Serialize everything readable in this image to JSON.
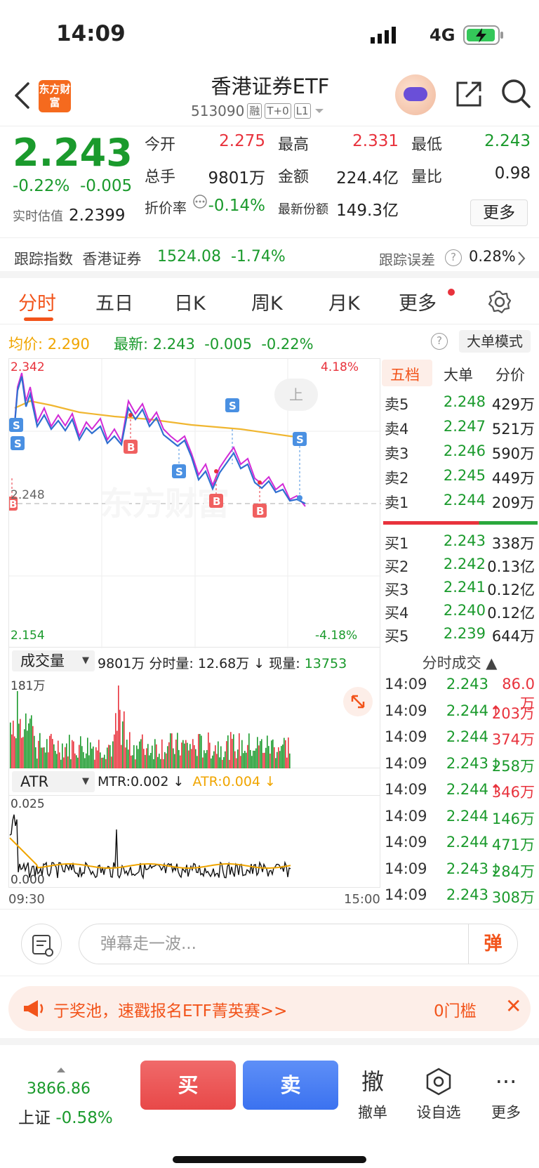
{
  "status_bar": {
    "time": "14:09",
    "network": "4G"
  },
  "header": {
    "back_icon": "chevron-left-icon",
    "logo_text": "东方财富",
    "title": "香港证券ETF",
    "code": "513090",
    "tags": [
      "融",
      "T+0",
      "L1"
    ],
    "share_icon": "share-icon",
    "search_icon": "search-icon"
  },
  "quote": {
    "price": "2.243",
    "change_pct": "-0.22%",
    "change_abs": "-0.005",
    "est_label": "实时估值",
    "est_value": "2.2399",
    "open_label": "今开",
    "open_value": "2.275",
    "high_label": "最高",
    "high_value": "2.331",
    "low_label": "最低",
    "low_value": "2.243",
    "vol_label": "总手",
    "vol_value": "9801万",
    "amount_label": "金额",
    "amount_value": "224.4亿",
    "ratio_label": "量比",
    "ratio_value": "0.98",
    "premium_label": "折价率",
    "premium_value": "-0.14%",
    "shares_label": "最新份额",
    "shares_value": "149.3亿",
    "more_label": "更多"
  },
  "tracking": {
    "label": "跟踪指数",
    "index_name": "香港证券",
    "index_value": "1524.08",
    "index_change": "-1.74%",
    "error_label": "跟踪误差",
    "error_value": "0.28%"
  },
  "tabs": [
    "分时",
    "五日",
    "日K",
    "周K",
    "月K",
    "更多"
  ],
  "avg_bar": {
    "avg_label": "均价:",
    "avg_value": "2.290",
    "latest_label": "最新:",
    "latest_value": "2.243",
    "latest_change": "-0.005",
    "latest_pct": "-0.22%",
    "big_order_mode": "大单模式"
  },
  "intraday_chart": {
    "max_price": "2.342",
    "ref_price": "2.248",
    "min_price": "2.154",
    "max_pct": "4.18%",
    "min_pct": "-4.18%",
    "scroll_hint": "上",
    "watermark": "东方财富"
  },
  "order_book": {
    "tabs": [
      "五档",
      "大单",
      "分价"
    ],
    "asks": [
      {
        "name": "卖5",
        "price": "2.248",
        "qty": "429万"
      },
      {
        "name": "卖4",
        "price": "2.247",
        "qty": "521万"
      },
      {
        "name": "卖3",
        "price": "2.246",
        "qty": "590万"
      },
      {
        "name": "卖2",
        "price": "2.245",
        "qty": "449万"
      },
      {
        "name": "卖1",
        "price": "2.244",
        "qty": "209万"
      }
    ],
    "bids": [
      {
        "name": "买1",
        "price": "2.243",
        "qty": "338万"
      },
      {
        "name": "买2",
        "price": "2.242",
        "qty": "0.13亿"
      },
      {
        "name": "买3",
        "price": "2.241",
        "qty": "0.12亿"
      },
      {
        "name": "买4",
        "price": "2.240",
        "qty": "0.12亿"
      },
      {
        "name": "买5",
        "price": "2.239",
        "qty": "644万"
      }
    ]
  },
  "volume": {
    "selector": "成交量",
    "total": "9801万",
    "minute_label": "分时量:",
    "minute_value": "12.68万",
    "now_label": "现量:",
    "now_value": "13753",
    "axis_max": "181万"
  },
  "atr": {
    "selector": "ATR",
    "mtr_label": "MTR:0.002",
    "atr_label": "ATR:0.004",
    "axis_max": "0.025",
    "axis_min": "0.000",
    "time_start": "09:30",
    "time_end": "15:00"
  },
  "ticks": {
    "header": "分时成交",
    "rows": [
      {
        "time": "14:09",
        "price": "2.243",
        "arrow": "",
        "qty": "86.0万",
        "color": "red"
      },
      {
        "time": "14:09",
        "price": "2.244",
        "arrow": "↑",
        "qty": "203万",
        "color": "red"
      },
      {
        "time": "14:09",
        "price": "2.244",
        "arrow": "",
        "qty": "374万",
        "color": "red"
      },
      {
        "time": "14:09",
        "price": "2.243",
        "arrow": "↓",
        "qty": "258万",
        "color": "green"
      },
      {
        "time": "14:09",
        "price": "2.244",
        "arrow": "↑",
        "qty": "346万",
        "color": "red"
      },
      {
        "time": "14:09",
        "price": "2.244",
        "arrow": "",
        "qty": "146万",
        "color": "green"
      },
      {
        "time": "14:09",
        "price": "2.244",
        "arrow": "",
        "qty": "471万",
        "color": "green"
      },
      {
        "time": "14:09",
        "price": "2.243",
        "arrow": "↓",
        "qty": "284万",
        "color": "green"
      },
      {
        "time": "14:09",
        "price": "2.243",
        "arrow": "",
        "qty": "308万",
        "color": "green"
      }
    ]
  },
  "comment": {
    "placeholder": "弹幕走一波...",
    "danmu_label": "弹"
  },
  "banner": {
    "text": "亍奖池，速戳报名ETF菁英赛>>",
    "right_text": "0门槛"
  },
  "bottom": {
    "index_value": "3866.86",
    "index_name": "上证",
    "index_change": "-0.58%",
    "buy": "买",
    "sell": "卖",
    "cancel_icon_char": "撤",
    "cancel_label": "撤单",
    "watch_label": "设自选",
    "more_label": "更多"
  },
  "colors": {
    "up": "#e8323c",
    "down": "#1a9a2c",
    "accent": "#f2541b",
    "avg_line": "#f0a500",
    "price_line": "#2f6fd0",
    "alt_line": "#d22ad6"
  }
}
